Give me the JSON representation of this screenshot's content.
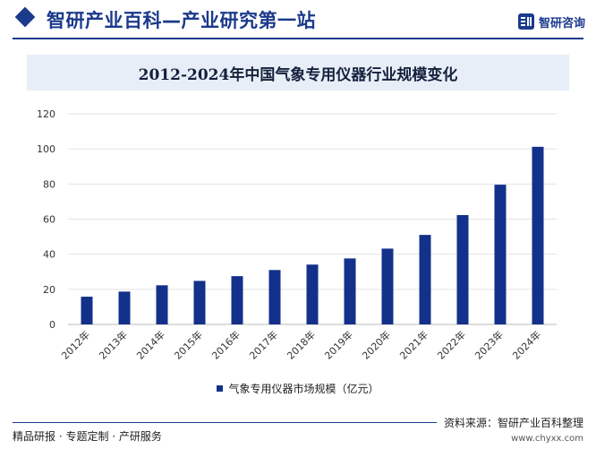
{
  "header": {
    "title": "智研产业百科—产业研究第一站",
    "brand": "智研咨询"
  },
  "chart_data": {
    "type": "bar",
    "title": "2012-2024年中国气象专用仪器行业规模变化",
    "categories": [
      "2012年",
      "2013年",
      "2014年",
      "2015年",
      "2016年",
      "2017年",
      "2018年",
      "2019年",
      "2020年",
      "2021年",
      "2022年",
      "2023年",
      "2024年"
    ],
    "series": [
      {
        "name": "气象专用仪器市场规模（亿元）",
        "values": [
          15.8,
          18.7,
          22.3,
          24.8,
          27.5,
          31.0,
          34.1,
          37.6,
          43.2,
          51.0,
          62.3,
          79.6,
          101.2
        ]
      }
    ],
    "ylim": [
      0,
      120
    ],
    "yticks": [
      0,
      20,
      40,
      60,
      80,
      100,
      120
    ],
    "grid": true,
    "legend_position": "bottom",
    "bar_color": "#13318a"
  },
  "footer": {
    "left": "精品研报 · 专题定制 · 产研服务",
    "right": "资料来源：智研产业百科整理",
    "url": "www.chyxx.com"
  }
}
